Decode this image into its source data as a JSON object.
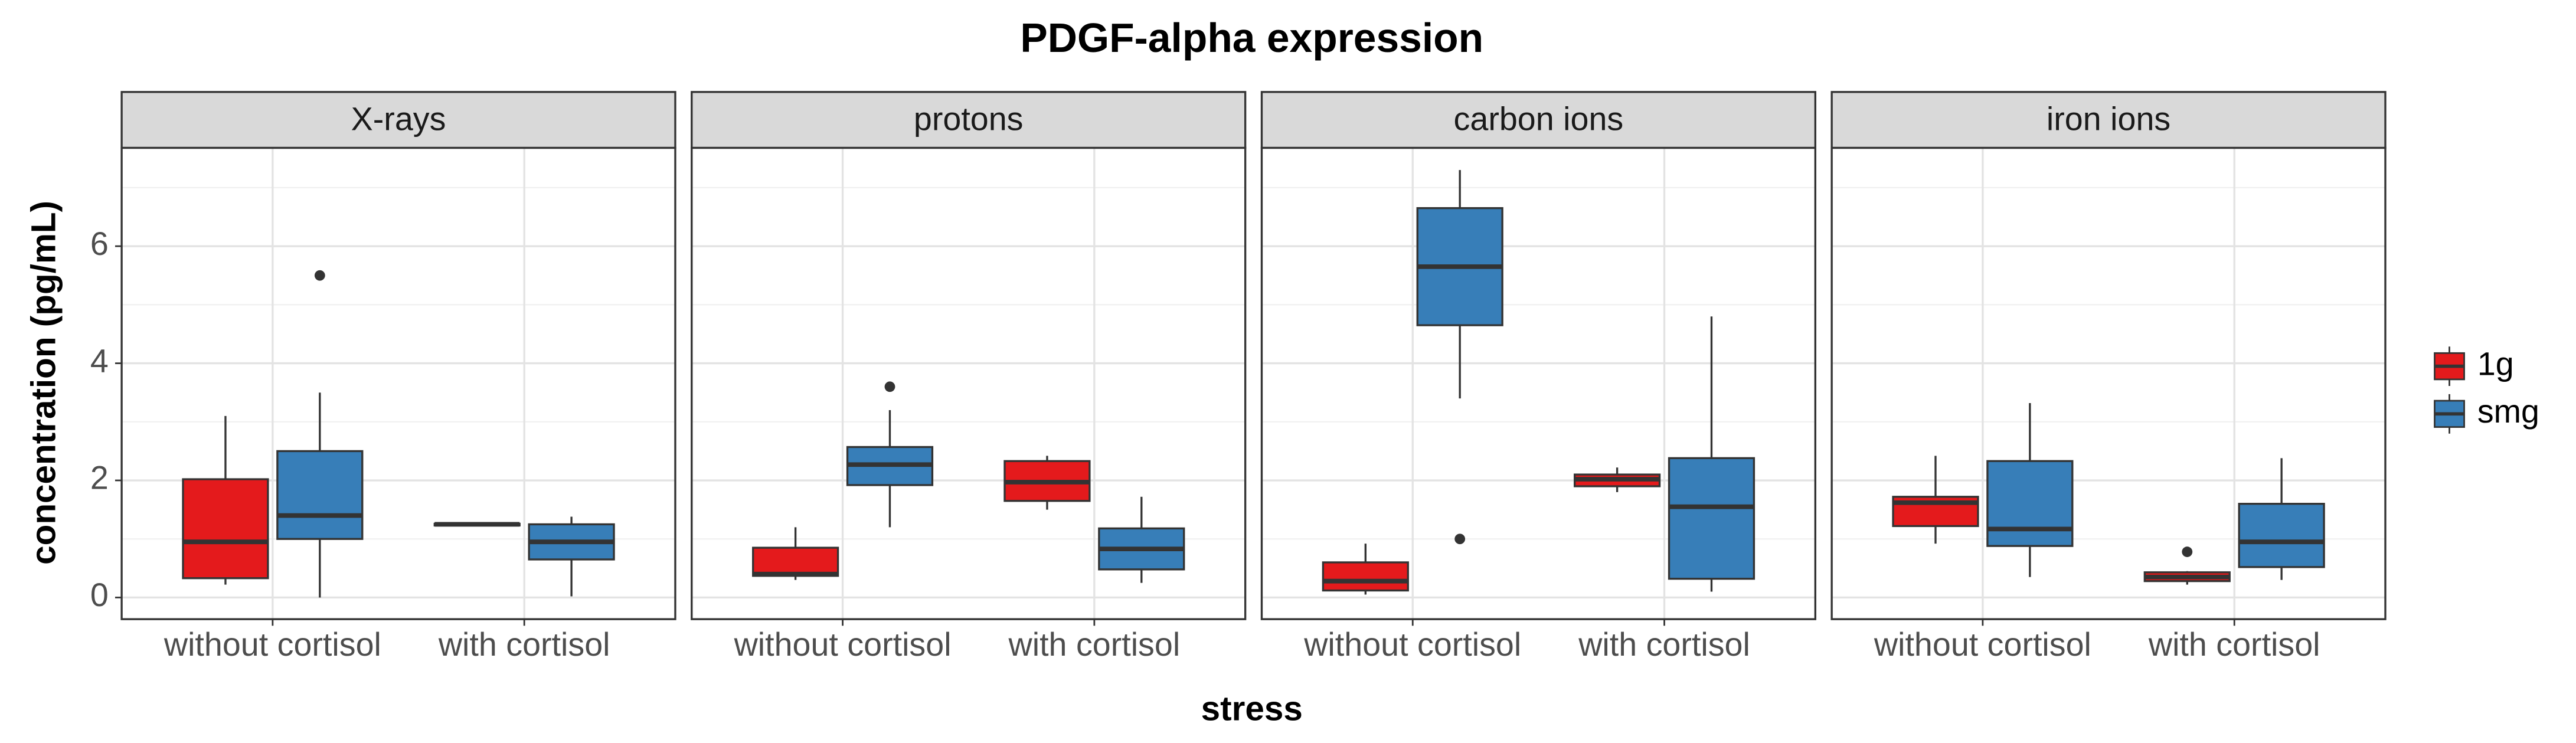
{
  "chart_data": {
    "type": "box",
    "title": "PDGF-alpha expression",
    "xlabel": "stress",
    "ylabel": "concentration (pg/mL)",
    "categories": [
      "without cortisol",
      "with cortisol"
    ],
    "series": [
      {
        "name": "1g",
        "color": "#e41a1c"
      },
      {
        "name": "smg",
        "color": "#377eb8"
      }
    ],
    "ylim": [
      -0.37,
      7.68
    ],
    "yticks": [
      0,
      2,
      4,
      6
    ],
    "yminor": [
      1,
      3,
      5,
      7
    ],
    "grid": true,
    "legend": "right",
    "panels": [
      {
        "title": "X-rays",
        "boxes": [
          [
            {
              "min": 0.22,
              "q1": 0.33,
              "median": 0.95,
              "q3": 2.02,
              "max": 3.1,
              "outliers": []
            },
            {
              "min": 0.0,
              "q1": 1.0,
              "median": 1.4,
              "q3": 2.5,
              "max": 3.5,
              "outliers": [
                5.5
              ]
            }
          ],
          [
            {
              "min": 1.22,
              "q1": 1.23,
              "median": 1.25,
              "q3": 1.26,
              "max": 1.27,
              "outliers": []
            },
            {
              "min": 0.02,
              "q1": 0.65,
              "median": 0.95,
              "q3": 1.25,
              "max": 1.38,
              "outliers": []
            }
          ]
        ]
      },
      {
        "title": "protons",
        "boxes": [
          [
            {
              "min": 0.3,
              "q1": 0.37,
              "median": 0.4,
              "q3": 0.85,
              "max": 1.2,
              "outliers": []
            },
            {
              "min": 1.2,
              "q1": 1.92,
              "median": 2.27,
              "q3": 2.57,
              "max": 3.2,
              "outliers": [
                3.6
              ]
            }
          ],
          [
            {
              "min": 1.5,
              "q1": 1.65,
              "median": 1.97,
              "q3": 2.33,
              "max": 2.42,
              "outliers": []
            },
            {
              "min": 0.25,
              "q1": 0.48,
              "median": 0.83,
              "q3": 1.18,
              "max": 1.72,
              "outliers": []
            }
          ]
        ]
      },
      {
        "title": "carbon ions",
        "boxes": [
          [
            {
              "min": 0.05,
              "q1": 0.12,
              "median": 0.28,
              "q3": 0.6,
              "max": 0.92,
              "outliers": []
            },
            {
              "min": 3.4,
              "q1": 4.65,
              "median": 5.65,
              "q3": 6.65,
              "max": 7.3,
              "outliers": [
                1.0
              ]
            }
          ],
          [
            {
              "min": 1.8,
              "q1": 1.9,
              "median": 2.02,
              "q3": 2.1,
              "max": 2.22,
              "outliers": []
            },
            {
              "min": 0.1,
              "q1": 0.32,
              "median": 1.55,
              "q3": 2.38,
              "max": 4.8,
              "outliers": []
            }
          ]
        ]
      },
      {
        "title": "iron ions",
        "boxes": [
          [
            {
              "min": 0.92,
              "q1": 1.22,
              "median": 1.62,
              "q3": 1.72,
              "max": 2.42,
              "outliers": []
            },
            {
              "min": 0.35,
              "q1": 0.88,
              "median": 1.17,
              "q3": 2.33,
              "max": 3.32,
              "outliers": []
            }
          ],
          [
            {
              "min": 0.22,
              "q1": 0.28,
              "median": 0.35,
              "q3": 0.43,
              "max": 0.45,
              "outliers": [
                0.78
              ]
            },
            {
              "min": 0.3,
              "q1": 0.52,
              "median": 0.95,
              "q3": 1.6,
              "max": 2.38,
              "outliers": []
            }
          ]
        ]
      }
    ]
  }
}
